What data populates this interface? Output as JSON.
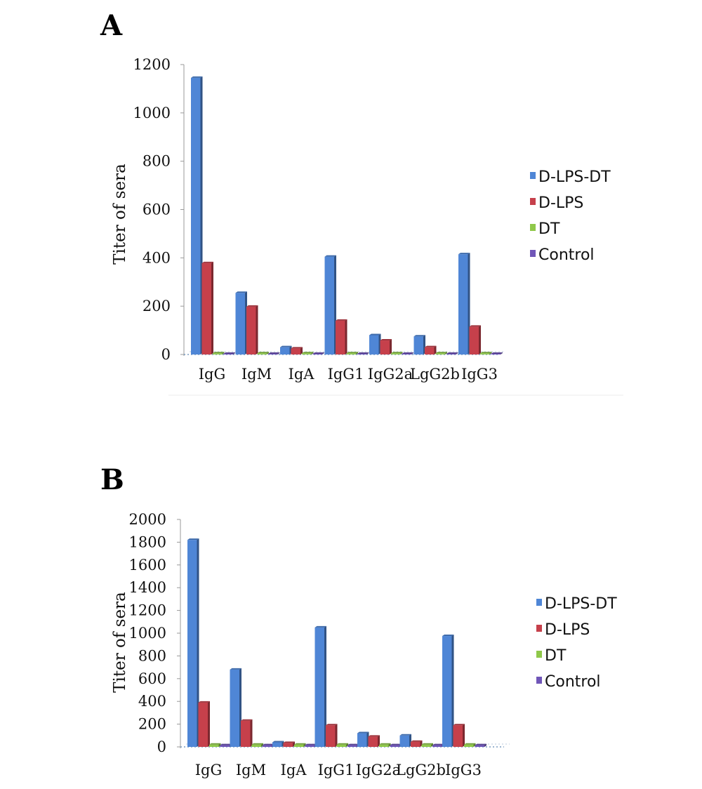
{
  "colors": {
    "D-LPS-DT": "#4f86d6",
    "D-LPS": "#c6404b",
    "DT": "#8fc84a",
    "Control": "#7056b8"
  },
  "chart_data": [
    {
      "panel": "A",
      "type": "bar",
      "ylabel": "Titer of sera",
      "ylim": [
        0,
        1200
      ],
      "yticks": [
        0,
        200,
        400,
        600,
        800,
        1000,
        1200
      ],
      "categories": [
        "IgG",
        "IgM",
        "IgA",
        "IgG1",
        "IgG2a",
        "LgG2b",
        "IgG3"
      ],
      "series": [
        {
          "name": "D-LPS-DT",
          "values": [
            1145,
            255,
            30,
            405,
            80,
            75,
            415
          ]
        },
        {
          "name": "D-LPS",
          "values": [
            378,
            198,
            25,
            140,
            58,
            30,
            115
          ]
        },
        {
          "name": "DT",
          "values": [
            5,
            5,
            5,
            5,
            5,
            5,
            5
          ]
        },
        {
          "name": "Control",
          "values": [
            3,
            3,
            3,
            3,
            3,
            3,
            3
          ]
        }
      ],
      "legend": "right"
    },
    {
      "panel": "B",
      "type": "bar",
      "ylabel": "Titer of sera",
      "ylim": [
        0,
        2000
      ],
      "yticks": [
        0,
        200,
        400,
        600,
        800,
        1000,
        1200,
        1400,
        1600,
        1800,
        2000
      ],
      "categories": [
        "IgG",
        "IgM",
        "IgA",
        "IgG1",
        "IgG2a",
        "LgG2b",
        "IgG3"
      ],
      "series": [
        {
          "name": "D-LPS-DT",
          "values": [
            1820,
            680,
            40,
            1050,
            120,
            100,
            975
          ]
        },
        {
          "name": "D-LPS",
          "values": [
            390,
            230,
            35,
            190,
            90,
            45,
            190
          ]
        },
        {
          "name": "DT",
          "values": [
            20,
            20,
            20,
            20,
            20,
            20,
            20
          ]
        },
        {
          "name": "Control",
          "values": [
            15,
            15,
            15,
            15,
            15,
            15,
            15
          ]
        }
      ],
      "legend": "right"
    }
  ]
}
